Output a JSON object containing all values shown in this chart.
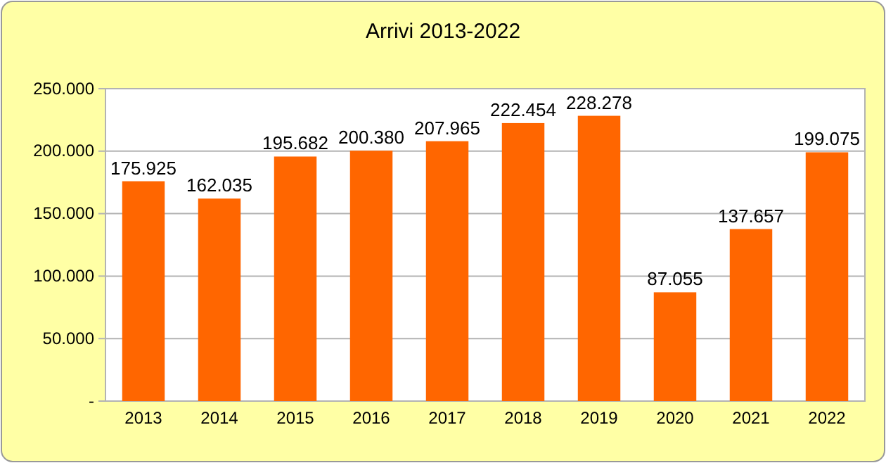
{
  "chart_data": {
    "type": "bar",
    "title": "Arrivi 2013-2022",
    "categories": [
      "2013",
      "2014",
      "2015",
      "2016",
      "2017",
      "2018",
      "2019",
      "2020",
      "2021",
      "2022"
    ],
    "values": [
      175925,
      162035,
      195682,
      200380,
      207965,
      222454,
      228278,
      87055,
      137657,
      199075
    ],
    "value_labels": [
      "175.925",
      "162.035",
      "195.682",
      "200.380",
      "207.965",
      "222.454",
      "228.278",
      "87.055",
      "137.657",
      "199.075"
    ],
    "color": "#ff6600",
    "ylim": [
      0,
      250000
    ],
    "yticks": [
      {
        "value": 0,
        "label": "-"
      },
      {
        "value": 50000,
        "label": "50.000"
      },
      {
        "value": 100000,
        "label": "100.000"
      },
      {
        "value": 150000,
        "label": "150.000"
      },
      {
        "value": 200000,
        "label": "200.000"
      },
      {
        "value": 250000,
        "label": "250.000"
      }
    ],
    "grid": "y"
  }
}
